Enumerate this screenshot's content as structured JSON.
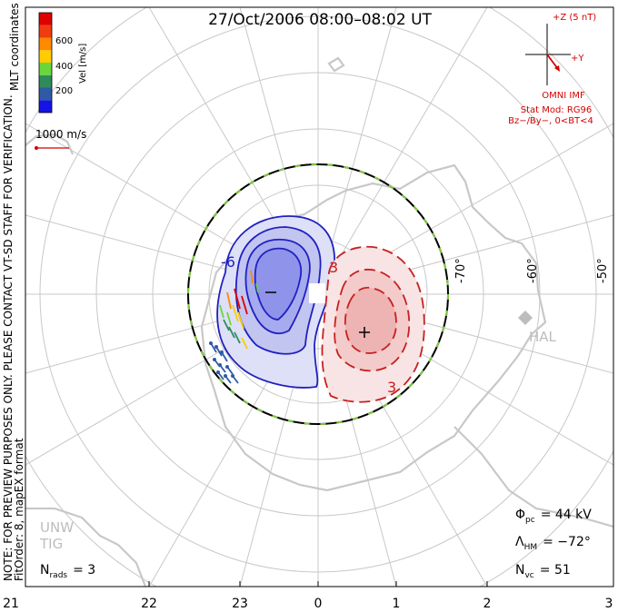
{
  "title": "27/Oct/2006 08:00–08:02 UT",
  "coords_label": "MLT coordinates",
  "side_note_1": "NOTE: FOR PREVIEW PURPOSES ONLY. PLEASE CONTACT VT-SD STAFF FOR VERIFICATION.",
  "side_note_2": "FitOrder: 8, mapEX format",
  "colorbar": {
    "label": "Vel [m/s]",
    "ticks": [
      "200",
      "400",
      "600"
    ],
    "colors": [
      "#1414e6",
      "#2e5aa8",
      "#2e8c5a",
      "#6ad63c",
      "#ffcc00",
      "#ff8a00",
      "#f03c10",
      "#e00000"
    ]
  },
  "vector_scale": "1000 m/s",
  "imf": {
    "z_label": "+Z (5 nT)",
    "y_label": "+Y",
    "source": "OMNI IMF",
    "model": "Stat Mod: RG96",
    "condition": "Bz−/By−, 0<BT<4",
    "color": "#d40000"
  },
  "lat_labels": [
    "-70°",
    "-60°",
    "-50°"
  ],
  "station_labels": [
    "HAL",
    "UNW",
    "TIG"
  ],
  "mlt_ticks": [
    "21",
    "22",
    "23",
    "0",
    "1",
    "2",
    "3"
  ],
  "contour_labels": {
    "negative": "-6",
    "positive": "3"
  },
  "stats": {
    "phi_label": "Φ",
    "phi_sub": "pc",
    "phi_value": "= 44 kV",
    "lambda_label": "Λ",
    "lambda_sub": "HM",
    "lambda_value": "= −72°",
    "nvc_label": "N",
    "nvc_sub": "vc",
    "nvc_value": "= 51",
    "nrads_label": "N",
    "nrads_sub": "rads",
    "nrads_value": "= 3"
  }
}
